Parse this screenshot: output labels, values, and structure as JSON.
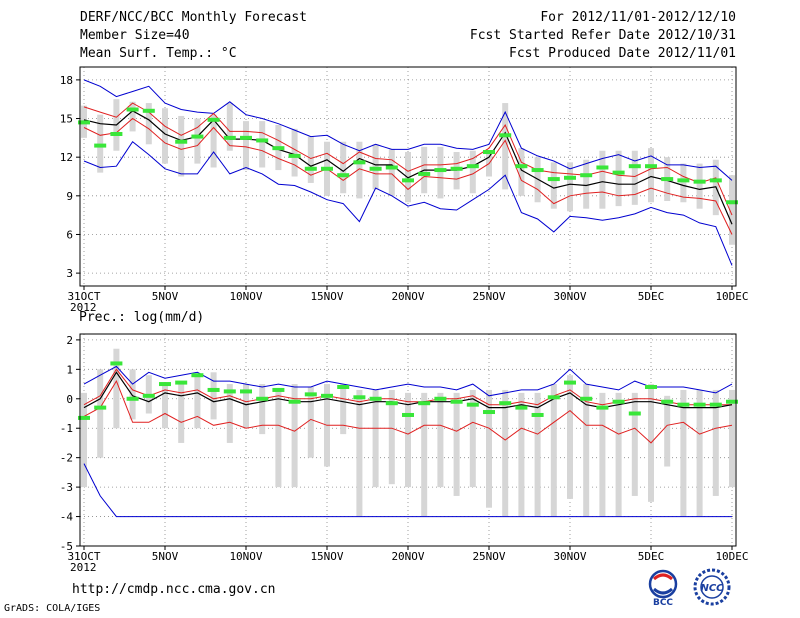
{
  "header": {
    "line1_left": "DERF/NCC/BCC Monthly Forecast",
    "line2_left": "Member Size=40",
    "line3_left": "Mean Surf. Temp.: °C",
    "line1_right": "For 2012/11/01-2012/12/10",
    "line2_right": "Fcst Started Refer Date 2012/10/31",
    "line3_right": "Fcst Produced Date 2012/11/01"
  },
  "footer": {
    "url": "http://cmdp.ncc.cma.gov.cn",
    "credit": "GrADS: COLA/IGES",
    "logo1_text": "BCC",
    "logo2_text": "NCC"
  },
  "colors": {
    "ensemble_bar": "#d6d6d6",
    "mean_line": "#000000",
    "std_line": "#e02020",
    "extreme_line": "#0000d0",
    "obs_marker": "#39e639",
    "grid": "#888888"
  },
  "chart_data": [
    {
      "type": "line",
      "title": "Mean Surf. Temp.: °C",
      "xlabel": "",
      "ylabel": "°C",
      "x": [
        "31OCT",
        "1NOV",
        "2NOV",
        "3NOV",
        "4NOV",
        "5NOV",
        "6NOV",
        "7NOV",
        "8NOV",
        "9NOV",
        "10NOV",
        "11NOV",
        "12NOV",
        "13NOV",
        "14NOV",
        "15NOV",
        "16NOV",
        "17NOV",
        "18NOV",
        "19NOV",
        "20NOV",
        "21NOV",
        "22NOV",
        "23NOV",
        "24NOV",
        "25NOV",
        "26NOV",
        "27NOV",
        "28NOV",
        "29NOV",
        "30NOV",
        "1DEC",
        "2DEC",
        "3DEC",
        "4DEC",
        "5DEC",
        "6DEC",
        "7DEC",
        "8DEC",
        "9DEC",
        "10DEC"
      ],
      "xtick_labels": [
        "31OCT",
        "5NOV",
        "10NOV",
        "15NOV",
        "20NOV",
        "25NOV",
        "30NOV",
        "5DEC",
        "10DEC"
      ],
      "xtick_index": [
        0,
        5,
        10,
        15,
        20,
        25,
        30,
        35,
        40
      ],
      "year_label": "2012",
      "ylim": [
        2,
        19
      ],
      "yticks": [
        3,
        6,
        9,
        12,
        15,
        18
      ],
      "grid": true,
      "box_low": [
        13.5,
        10.8,
        12.5,
        14.0,
        13.0,
        11.5,
        10.5,
        11.5,
        11.2,
        12.5,
        11.0,
        11.2,
        11.0,
        10.5,
        10.0,
        9.0,
        9.2,
        8.8,
        9.5,
        9.0,
        8.5,
        9.2,
        8.8,
        9.5,
        9.2,
        10.5,
        9.5,
        9.0,
        8.5,
        8.0,
        7.8,
        8.0,
        8.0,
        8.2,
        8.3,
        8.5,
        8.6,
        8.5,
        8.0,
        7.5,
        5.2
      ],
      "box_high": [
        16.0,
        15.3,
        16.5,
        16.3,
        16.2,
        15.8,
        15.2,
        15.0,
        15.3,
        16.2,
        14.8,
        14.8,
        14.5,
        14.2,
        13.6,
        13.2,
        13.2,
        13.2,
        13.0,
        12.6,
        12.4,
        12.8,
        12.8,
        12.4,
        12.5,
        12.4,
        16.2,
        12.7,
        12.0,
        11.6,
        11.6,
        11.8,
        12.5,
        12.5,
        12.5,
        12.7,
        12.0,
        11.5,
        11.5,
        11.8,
        10.6
      ],
      "series": [
        {
          "name": "max",
          "values": [
            18.0,
            17.5,
            16.7,
            17.1,
            17.5,
            16.2,
            15.7,
            15.5,
            15.4,
            16.3,
            15.3,
            15.0,
            14.6,
            14.1,
            13.6,
            13.7,
            13.0,
            12.5,
            13.0,
            12.6,
            12.6,
            13.0,
            13.0,
            12.7,
            12.6,
            13.0,
            15.5,
            12.7,
            12.1,
            11.7,
            11.1,
            11.5,
            11.9,
            12.2,
            11.7,
            12.1,
            11.4,
            11.4,
            11.2,
            11.3,
            10.2
          ]
        },
        {
          "name": "upper",
          "values": [
            15.9,
            15.5,
            15.1,
            16.2,
            15.5,
            14.4,
            13.7,
            14.3,
            15.4,
            14.0,
            14.0,
            13.9,
            13.3,
            12.6,
            11.9,
            12.3,
            11.5,
            12.4,
            11.9,
            11.8,
            10.9,
            11.4,
            11.4,
            11.5,
            11.9,
            12.7,
            14.5,
            11.6,
            11.0,
            10.8,
            10.7,
            10.6,
            10.9,
            10.6,
            10.5,
            11.1,
            11.2,
            10.5,
            10.0,
            10.4,
            7.5
          ]
        },
        {
          "name": "mean",
          "values": [
            14.9,
            14.6,
            14.5,
            15.6,
            14.9,
            13.8,
            13.3,
            13.6,
            14.9,
            13.4,
            13.4,
            13.3,
            12.6,
            12.2,
            11.3,
            11.8,
            10.9,
            11.9,
            11.4,
            11.4,
            10.4,
            11.0,
            11.0,
            11.0,
            11.3,
            12.0,
            13.9,
            11.0,
            10.3,
            9.6,
            9.9,
            9.8,
            10.1,
            9.9,
            9.9,
            10.5,
            10.2,
            9.8,
            9.5,
            9.7,
            6.8
          ]
        },
        {
          "name": "lower",
          "values": [
            14.3,
            13.7,
            13.9,
            15.0,
            14.2,
            13.1,
            12.6,
            12.9,
            14.3,
            12.9,
            12.8,
            12.5,
            11.9,
            11.4,
            10.6,
            11.1,
            10.2,
            11.1,
            10.7,
            10.7,
            9.5,
            10.5,
            10.4,
            10.3,
            10.7,
            11.5,
            13.3,
            10.2,
            9.5,
            8.4,
            9.0,
            9.2,
            9.3,
            9.0,
            9.1,
            9.6,
            9.2,
            8.9,
            8.8,
            8.6,
            6.0
          ]
        },
        {
          "name": "min",
          "values": [
            11.7,
            11.2,
            11.3,
            13.2,
            12.2,
            11.1,
            10.7,
            10.7,
            12.4,
            10.7,
            11.2,
            10.7,
            9.9,
            9.8,
            9.3,
            8.7,
            8.4,
            7.0,
            9.6,
            9.0,
            8.2,
            8.5,
            8.0,
            7.9,
            8.7,
            9.5,
            10.6,
            7.7,
            7.2,
            6.2,
            7.4,
            7.3,
            7.1,
            7.3,
            7.6,
            8.1,
            7.7,
            7.5,
            6.9,
            6.6,
            3.6
          ]
        }
      ],
      "obs": [
        14.7,
        12.9,
        13.8,
        15.7,
        15.6,
        null,
        13.2,
        13.6,
        14.9,
        13.5,
        13.5,
        13.3,
        12.7,
        12.1,
        11.1,
        11.1,
        10.6,
        11.6,
        11.1,
        11.2,
        10.2,
        10.7,
        11.0,
        11.1,
        11.3,
        12.4,
        13.7,
        11.3,
        11.0,
        10.3,
        10.4,
        10.6,
        11.2,
        10.8,
        11.3,
        11.3,
        10.3,
        10.2,
        10.1,
        10.2,
        8.5
      ]
    },
    {
      "type": "line",
      "title": "Prec.: log(mm/d)",
      "xlabel": "",
      "ylabel": "log(mm/d)",
      "x": [
        "31OCT",
        "1NOV",
        "2NOV",
        "3NOV",
        "4NOV",
        "5NOV",
        "6NOV",
        "7NOV",
        "8NOV",
        "9NOV",
        "10NOV",
        "11NOV",
        "12NOV",
        "13NOV",
        "14NOV",
        "15NOV",
        "16NOV",
        "17NOV",
        "18NOV",
        "19NOV",
        "20NOV",
        "21NOV",
        "22NOV",
        "23NOV",
        "24NOV",
        "25NOV",
        "26NOV",
        "27NOV",
        "28NOV",
        "29NOV",
        "30NOV",
        "1DEC",
        "2DEC",
        "3DEC",
        "4DEC",
        "5DEC",
        "6DEC",
        "7DEC",
        "8DEC",
        "9DEC",
        "10DEC"
      ],
      "xtick_labels": [
        "31OCT",
        "5NOV",
        "10NOV",
        "15NOV",
        "20NOV",
        "25NOV",
        "30NOV",
        "5DEC",
        "10DEC"
      ],
      "xtick_index": [
        0,
        5,
        10,
        15,
        20,
        25,
        30,
        35,
        40
      ],
      "year_label": "2012",
      "ylim": [
        -5,
        2.2
      ],
      "yticks": [
        -5,
        -4,
        -3,
        -2,
        -1,
        0,
        1,
        2
      ],
      "grid": true,
      "box_low": [
        -3.0,
        -2.0,
        -1.0,
        -0.7,
        -0.5,
        -1.0,
        -1.5,
        -1.0,
        -0.7,
        -1.5,
        -1.0,
        -1.2,
        -3.0,
        -3.0,
        -2.0,
        -2.3,
        -1.2,
        -4.0,
        -3.0,
        -2.9,
        -3.0,
        -4.0,
        -3.0,
        -3.3,
        -3.0,
        -3.7,
        -4.0,
        -4.0,
        -4.0,
        -4.0,
        -3.4,
        -4.0,
        -4.0,
        -4.0,
        -3.3,
        -3.5,
        -2.3,
        -4.0,
        -4.0,
        -3.3,
        -3.0
      ],
      "box_high": [
        0.2,
        1.0,
        1.7,
        1.0,
        0.8,
        0.5,
        0.6,
        0.8,
        0.9,
        0.5,
        0.5,
        0.5,
        0.3,
        0.5,
        0.4,
        0.5,
        0.5,
        0.3,
        0.3,
        0.3,
        0.2,
        0.2,
        0.2,
        0.2,
        0.3,
        0.3,
        0.3,
        0.2,
        0.2,
        0.5,
        0.8,
        0.5,
        0.2,
        0.2,
        0.2,
        0.5,
        0.1,
        0.3,
        0.3,
        0.3,
        0.3
      ],
      "series": [
        {
          "name": "max",
          "values": [
            0.5,
            0.8,
            1.1,
            0.5,
            0.9,
            0.7,
            0.8,
            0.9,
            0.6,
            0.6,
            0.5,
            0.4,
            0.5,
            0.4,
            0.4,
            0.6,
            0.5,
            0.4,
            0.3,
            0.4,
            0.5,
            0.4,
            0.4,
            0.3,
            0.5,
            0.1,
            0.2,
            0.3,
            0.3,
            0.5,
            1.0,
            0.5,
            0.4,
            0.3,
            0.6,
            0.4,
            0.4,
            0.4,
            0.3,
            0.2,
            0.5
          ]
        },
        {
          "name": "upper",
          "values": [
            -0.2,
            0.1,
            1.0,
            0.3,
            0.1,
            0.3,
            0.2,
            0.3,
            0.0,
            0.1,
            -0.1,
            0.0,
            0.1,
            0.0,
            0.0,
            0.1,
            0.0,
            -0.1,
            0.0,
            0.0,
            -0.1,
            -0.1,
            0.0,
            0.0,
            0.1,
            -0.2,
            -0.2,
            -0.1,
            -0.2,
            0.1,
            0.3,
            -0.1,
            -0.2,
            -0.1,
            0.0,
            0.0,
            -0.1,
            -0.2,
            -0.2,
            -0.2,
            -0.2
          ]
        },
        {
          "name": "mean",
          "values": [
            -0.3,
            0.0,
            0.9,
            0.1,
            -0.1,
            0.2,
            0.1,
            0.2,
            -0.1,
            0.0,
            -0.2,
            -0.1,
            0.0,
            -0.1,
            -0.1,
            0.0,
            -0.1,
            -0.2,
            -0.1,
            -0.1,
            -0.2,
            -0.1,
            -0.1,
            -0.1,
            0.0,
            -0.3,
            -0.3,
            -0.2,
            -0.3,
            0.0,
            0.2,
            -0.2,
            -0.3,
            -0.2,
            -0.1,
            -0.1,
            -0.2,
            -0.3,
            -0.3,
            -0.3,
            -0.2
          ]
        },
        {
          "name": "lower",
          "values": [
            -0.6,
            -0.3,
            0.6,
            -0.8,
            -0.8,
            -0.5,
            -0.8,
            -0.6,
            -0.9,
            -0.8,
            -1.0,
            -0.9,
            -0.9,
            -1.1,
            -0.7,
            -0.9,
            -0.9,
            -1.0,
            -1.0,
            -1.0,
            -1.2,
            -0.9,
            -0.9,
            -1.1,
            -0.8,
            -1.0,
            -1.4,
            -1.0,
            -1.2,
            -0.8,
            -0.4,
            -0.9,
            -0.9,
            -1.2,
            -1.0,
            -1.5,
            -0.9,
            -0.8,
            -1.2,
            -1.0,
            -0.9
          ]
        },
        {
          "name": "min",
          "values": [
            -2.2,
            -3.3,
            -4.0,
            -4.0,
            -4.0,
            -4.0,
            -4.0,
            -4.0,
            -4.0,
            -4.0,
            -4.0,
            -4.0,
            -4.0,
            -4.0,
            -4.0,
            -4.0,
            -4.0,
            -4.0,
            -4.0,
            -4.0,
            -4.0,
            -4.0,
            -4.0,
            -4.0,
            -4.0,
            -4.0,
            -4.0,
            -4.0,
            -4.0,
            -4.0,
            -4.0,
            -4.0,
            -4.0,
            -4.0,
            -4.0,
            -4.0,
            -4.0,
            -4.0,
            -4.0,
            -4.0,
            -4.0
          ]
        }
      ],
      "obs": [
        -0.65,
        -0.3,
        1.2,
        0.0,
        0.1,
        0.5,
        0.55,
        0.8,
        0.3,
        0.25,
        0.25,
        0.0,
        0.3,
        -0.1,
        0.15,
        0.1,
        0.4,
        0.05,
        0.0,
        -0.15,
        -0.55,
        -0.15,
        0.0,
        -0.1,
        -0.2,
        -0.45,
        -0.15,
        -0.3,
        -0.55,
        0.05,
        0.55,
        0.0,
        -0.3,
        -0.1,
        -0.5,
        0.4,
        -0.1,
        -0.2,
        -0.2,
        -0.2,
        -0.1
      ]
    }
  ]
}
